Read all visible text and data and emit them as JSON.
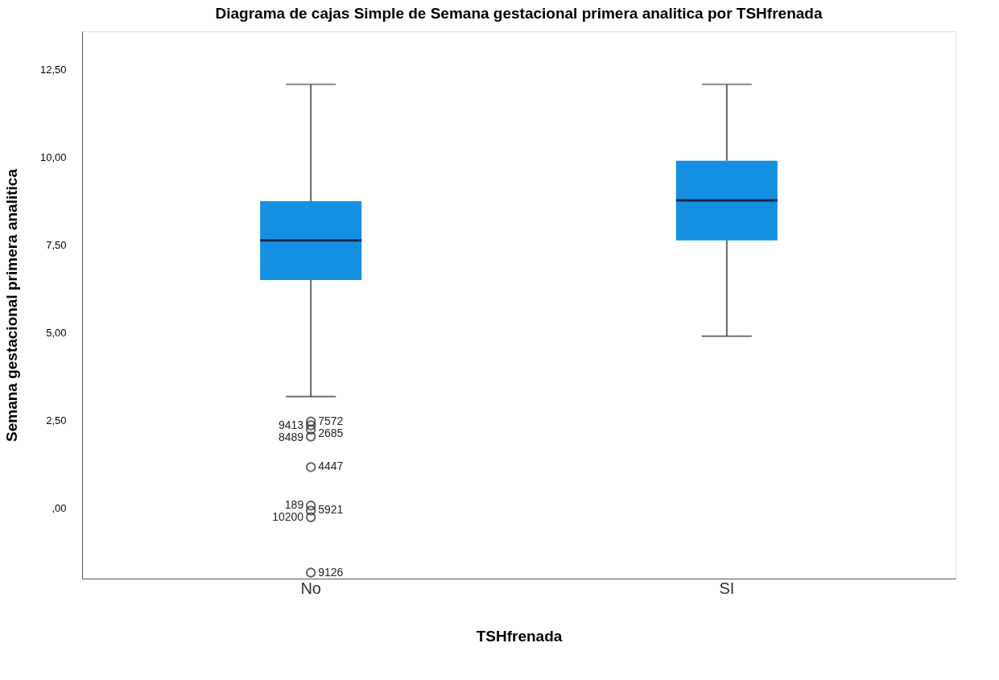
{
  "chart_data": {
    "type": "box",
    "title": "Diagrama de cajas Simple de Semana gestacional primera analitica por TSHfrenada",
    "xlabel": "TSHfrenada",
    "ylabel": "Semana gestacional primera analitica",
    "categories": [
      "No",
      "SI"
    ],
    "series": [
      {
        "color": "#1490e3",
        "boxes": [
          {
            "low": 3.19,
            "q1": 6.51,
            "median": 7.64,
            "q3": 8.76,
            "high": 12.09,
            "outliers": [
              2.48,
              2.37,
              2.25,
              2.05,
              1.18,
              0.08,
              -0.06,
              -0.25,
              -1.83
            ]
          },
          {
            "low": 4.91,
            "q1": 7.64,
            "median": 8.78,
            "q3": 9.91,
            "high": 12.09
          }
        ]
      }
    ],
    "ylim": [
      -2.0,
      13.6
    ],
    "yticks": [
      {
        "value": 0,
        "label": ",00"
      },
      {
        "value": 2.5,
        "label": "2,50"
      },
      {
        "value": 5,
        "label": "5,00"
      },
      {
        "value": 7.5,
        "label": "7,50"
      },
      {
        "value": 10,
        "label": "10,00"
      },
      {
        "value": 12.5,
        "label": "12,50"
      }
    ],
    "grid": false,
    "marker": "circle",
    "annotations": [
      "7572",
      "9413",
      "2685",
      "8489",
      "4447",
      "189",
      "5921",
      "10200",
      "9126"
    ]
  }
}
